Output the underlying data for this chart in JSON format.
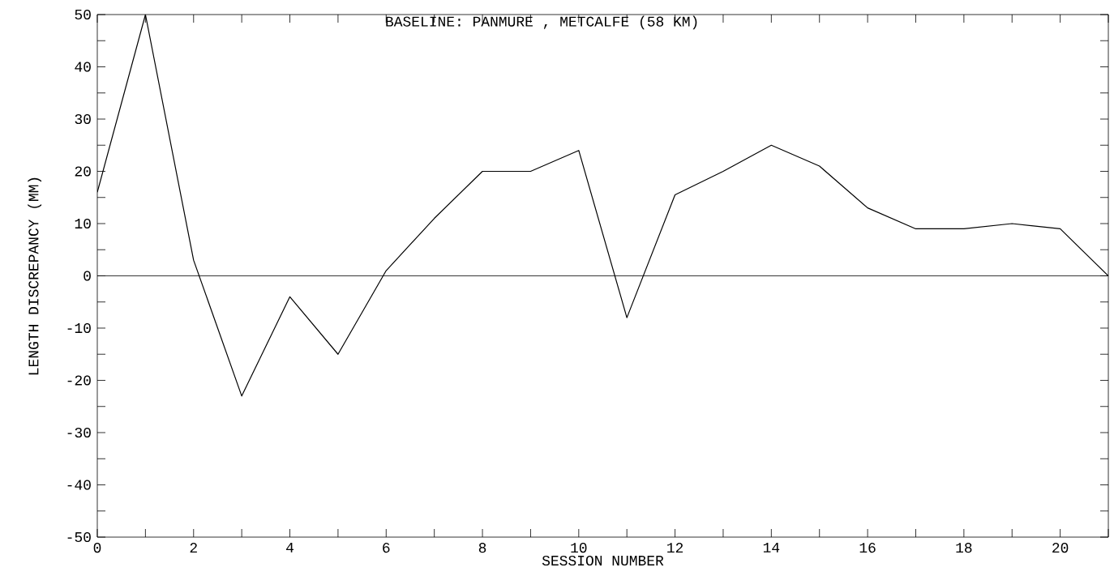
{
  "chart_data": {
    "type": "line",
    "title": "BASELINE: PANMURE , METCALFE (58 KM)",
    "xlabel": "SESSION NUMBER",
    "ylabel": "LENGTH DISCREPANCY (MM)",
    "x": [
      0,
      1,
      2,
      3,
      4,
      5,
      6,
      7,
      8,
      9,
      10,
      11,
      12,
      13,
      14,
      15,
      16,
      17,
      18,
      19,
      20,
      21
    ],
    "values": [
      16,
      50,
      3,
      -23,
      -4,
      -15,
      1,
      11,
      20,
      20,
      24,
      -8,
      15.5,
      20,
      25,
      21,
      13,
      9,
      9,
      10,
      9,
      0
    ],
    "color": "#000000",
    "marker": "none",
    "line_style": "solid",
    "grid": false,
    "xlim": [
      0,
      21
    ],
    "ylim": [
      -50,
      50
    ],
    "xticks": [
      0,
      {
        "value": 1,
        "label": null
      },
      2,
      {
        "value": 3,
        "label": null
      },
      4,
      {
        "value": 5,
        "label": null
      },
      6,
      {
        "value": 7,
        "label": null
      },
      8,
      {
        "value": 9,
        "label": null
      },
      10,
      {
        "value": 11,
        "label": null
      },
      12,
      {
        "value": 13,
        "label": null
      },
      14,
      {
        "value": 15,
        "label": null
      },
      16,
      {
        "value": 17,
        "label": null
      },
      18,
      {
        "value": 19,
        "label": null
      },
      20,
      {
        "value": 21,
        "label": null
      }
    ],
    "yticks": [
      -50,
      {
        "value": -45,
        "label": null
      },
      -40,
      {
        "value": -35,
        "label": null
      },
      -30,
      {
        "value": -25,
        "label": null
      },
      -20,
      {
        "value": -15,
        "label": null
      },
      -10,
      {
        "value": -5,
        "label": null
      },
      0,
      {
        "value": 5,
        "label": null
      },
      10,
      {
        "value": 15,
        "label": null
      },
      20,
      {
        "value": 25,
        "label": null
      },
      30,
      {
        "value": 35,
        "label": null
      },
      40,
      {
        "value": 45,
        "label": null
      },
      50
    ],
    "ref_lines": [
      {
        "axis": "y",
        "value": 0
      }
    ]
  }
}
